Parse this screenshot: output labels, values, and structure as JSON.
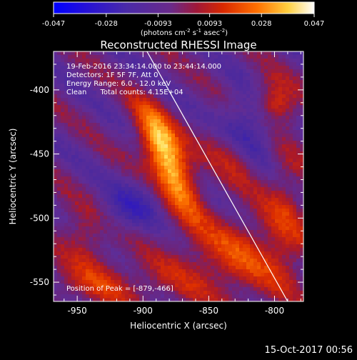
{
  "colorbar": {
    "ticks": [
      "-0.047",
      "-0.028",
      "-0.0093",
      "0.0093",
      "0.028",
      "0.047"
    ],
    "values": [
      -0.047,
      -0.028,
      -0.0093,
      0.0093,
      0.028,
      0.047
    ],
    "range": [
      -0.047,
      0.047
    ],
    "unit_label": "(photons cm",
    "unit_sup1": "-2",
    "unit_mid": " s",
    "unit_sup2": "-1",
    "unit_end": " asec",
    "unit_sup3": "-2",
    "unit_close": ")"
  },
  "chart_data": {
    "type": "heatmap",
    "title": "Reconstructed RHESSI Image",
    "xlabel": "Heliocentric X (arcsec)",
    "ylabel": "Heliocentric Y (arcsec)",
    "xlim": [
      -968,
      -778
    ],
    "ylim": [
      -565,
      -370
    ],
    "xticks": [
      -950,
      -900,
      -850,
      -800
    ],
    "yticks": [
      -400,
      -450,
      -500,
      -550
    ],
    "xtick_labels": [
      "-950",
      "-900",
      "-850",
      "-800"
    ],
    "ytick_labels": [
      "-400",
      "-450",
      "-500",
      "-550"
    ],
    "peak": {
      "x": -879,
      "y": -466,
      "value": 0.047
    },
    "limb_line": [
      [
        -897,
        -370
      ],
      [
        -790,
        -565
      ]
    ],
    "colormap": [
      "#0000ff",
      "#4a2aa8",
      "#7a3ca8",
      "#cc2200",
      "#ff7000",
      "#ffff80",
      "#ffffff"
    ],
    "annotations": [
      "19-Feb-2016 23:34:14.000 to 23:44:14.000",
      "Detectors: 1F 5F 7F, Att 0",
      "Energy Range: 6.0 - 12.0 keV",
      "Clean      Total counts: 4.15E+04",
      "Position of Peak = [-879,-466]"
    ]
  },
  "footer_timestamp": "15-Oct-2017 00:56"
}
